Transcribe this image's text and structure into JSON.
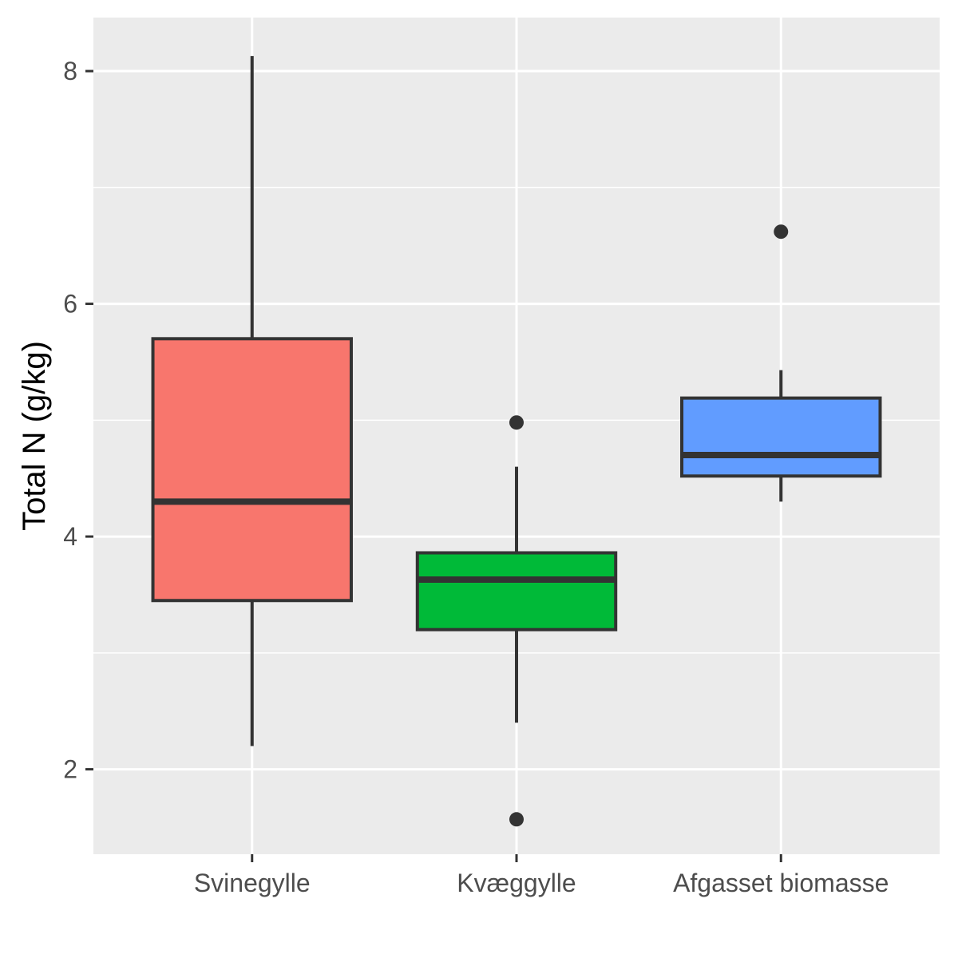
{
  "chart_data": {
    "type": "boxplot",
    "title": "",
    "xlabel": "",
    "ylabel": "Total N (g/kg)",
    "ylim": [
      1.27,
      8.46
    ],
    "y_major_ticks": [
      2,
      4,
      6,
      8
    ],
    "y_minor_ticks": [
      3,
      5,
      7
    ],
    "grid": true,
    "background": "#EBEBEB",
    "categories": [
      "Svinegylle",
      "Kvæggylle",
      "Afgasset biomasse"
    ],
    "series": [
      {
        "color": "#F8766D",
        "whisker_low": 2.2,
        "q1": 3.45,
        "median": 4.3,
        "q3": 5.7,
        "whisker_high": 8.13,
        "outliers": []
      },
      {
        "color": "#00BA38",
        "whisker_low": 2.4,
        "q1": 3.2,
        "median": 3.63,
        "q3": 3.86,
        "whisker_high": 4.6,
        "outliers": [
          4.98,
          1.57
        ]
      },
      {
        "color": "#619CFF",
        "whisker_low": 4.3,
        "q1": 4.52,
        "median": 4.7,
        "q3": 5.19,
        "whisker_high": 5.43,
        "outliers": [
          6.62
        ]
      }
    ]
  }
}
